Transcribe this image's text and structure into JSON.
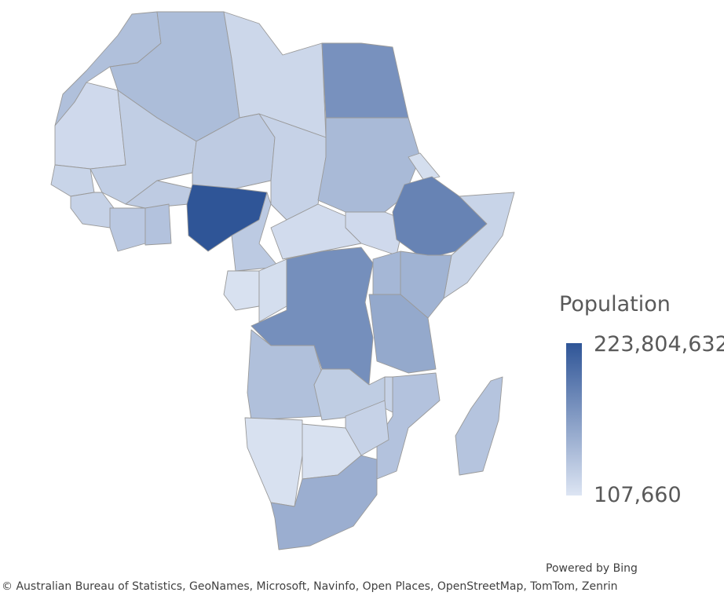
{
  "legend": {
    "title": "Population",
    "max_label": "223,804,632",
    "min_label": "107,660",
    "color_min": "#dde5f3",
    "color_max": "#2f5597"
  },
  "footer": {
    "powered_by": "Powered by Bing",
    "attribution": "© Australian Bureau of Statistics, GeoNames, Microsoft, Navinfo, Open Places, OpenStreetMap, TomTom, Zenrin"
  },
  "regions": [
    {
      "id": "morocco",
      "level": 0.26
    },
    {
      "id": "algeria",
      "level": 0.28
    },
    {
      "id": "libya",
      "level": 0.1
    },
    {
      "id": "egypt",
      "level": 0.58
    },
    {
      "id": "mauritania",
      "level": 0.08
    },
    {
      "id": "mali",
      "level": 0.16
    },
    {
      "id": "niger",
      "level": 0.18
    },
    {
      "id": "chad",
      "level": 0.13
    },
    {
      "id": "sudan",
      "level": 0.3
    },
    {
      "id": "senegal",
      "level": 0.12
    },
    {
      "id": "guinea",
      "level": 0.13
    },
    {
      "id": "burkina-faso",
      "level": 0.18
    },
    {
      "id": "ivory-coast",
      "level": 0.2
    },
    {
      "id": "ghana",
      "level": 0.24
    },
    {
      "id": "nigeria",
      "level": 1.0
    },
    {
      "id": "cameroon",
      "level": 0.19
    },
    {
      "id": "central-african-republic",
      "level": 0.07
    },
    {
      "id": "south-sudan",
      "level": 0.08
    },
    {
      "id": "eritrea",
      "level": 0.05
    },
    {
      "id": "ethiopia",
      "level": 0.68
    },
    {
      "id": "somalia",
      "level": 0.12
    },
    {
      "id": "kenya",
      "level": 0.35
    },
    {
      "id": "uganda",
      "level": 0.32
    },
    {
      "id": "gabon",
      "level": 0.03
    },
    {
      "id": "congo",
      "level": 0.05
    },
    {
      "id": "dr-congo",
      "level": 0.6
    },
    {
      "id": "tanzania",
      "level": 0.42
    },
    {
      "id": "angola",
      "level": 0.26
    },
    {
      "id": "zambia",
      "level": 0.17
    },
    {
      "id": "mozambique",
      "level": 0.24
    },
    {
      "id": "malawi",
      "level": 0.13
    },
    {
      "id": "zimbabwe",
      "level": 0.13
    },
    {
      "id": "namibia",
      "level": 0.03
    },
    {
      "id": "botswana",
      "level": 0.03
    },
    {
      "id": "south-africa",
      "level": 0.38
    },
    {
      "id": "madagascar",
      "level": 0.23
    }
  ]
}
